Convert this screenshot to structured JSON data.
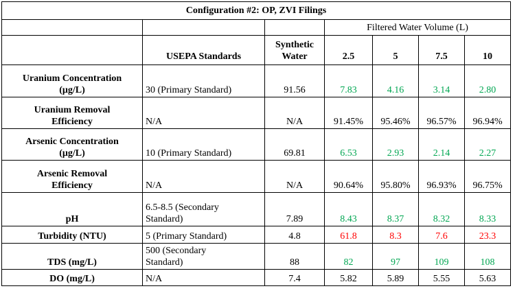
{
  "title": "Configuration #2: OP, ZVI Filings",
  "header": {
    "filtered_water_volume": "Filtered Water Volume (L)",
    "usepa": "USEPA Standards",
    "synthetic_line1": "Synthetic",
    "synthetic_line2": "Water",
    "volumes": [
      "2.5",
      "5",
      "7.5",
      "10"
    ]
  },
  "colors": {
    "good": "#00a651",
    "bad": "#ff0000",
    "neutral": "#000000"
  },
  "rows": [
    {
      "param_line1": "Uranium Concentration",
      "param_line2": "(μg/L)",
      "standard_line1": "30 (Primary Standard)",
      "standard_line2": "",
      "synthetic": "91.56",
      "values": [
        {
          "v": "7.83",
          "c": "green"
        },
        {
          "v": "4.16",
          "c": "green"
        },
        {
          "v": "3.14",
          "c": "green"
        },
        {
          "v": "2.80",
          "c": "green"
        }
      ]
    },
    {
      "param_line1": "Uranium Removal",
      "param_line2": "Efficiency",
      "standard_line1": "N/A",
      "standard_line2": "",
      "synthetic": "N/A",
      "values": [
        {
          "v": "91.45%",
          "c": "black"
        },
        {
          "v": "95.46%",
          "c": "black"
        },
        {
          "v": "96.57%",
          "c": "black"
        },
        {
          "v": "96.94%",
          "c": "black"
        }
      ]
    },
    {
      "param_line1": "Arsenic Concentration",
      "param_line2": "(μg/L)",
      "standard_line1": "10 (Primary Standard)",
      "standard_line2": "",
      "synthetic": "69.81",
      "values": [
        {
          "v": "6.53",
          "c": "green"
        },
        {
          "v": "2.93",
          "c": "green"
        },
        {
          "v": "2.14",
          "c": "green"
        },
        {
          "v": "2.27",
          "c": "green"
        }
      ]
    },
    {
      "param_line1": "Arsenic Removal",
      "param_line2": "Efficiency",
      "standard_line1": "N/A",
      "standard_line2": "",
      "synthetic": "N/A",
      "values": [
        {
          "v": "90.64%",
          "c": "black"
        },
        {
          "v": "95.80%",
          "c": "black"
        },
        {
          "v": "96.93%",
          "c": "black"
        },
        {
          "v": "96.75%",
          "c": "black"
        }
      ]
    },
    {
      "param_line1": "pH",
      "param_line2": "",
      "standard_line1": "6.5-8.5 (Secondary",
      "standard_line2": "Standard)",
      "synthetic": "7.89",
      "values": [
        {
          "v": "8.43",
          "c": "green"
        },
        {
          "v": "8.37",
          "c": "green"
        },
        {
          "v": "8.32",
          "c": "green"
        },
        {
          "v": "8.33",
          "c": "green"
        }
      ]
    },
    {
      "param_line1": "Turbidity (NTU)",
      "param_line2": "",
      "standard_line1": "5 (Primary Standard)",
      "standard_line2": "",
      "synthetic": "4.8",
      "values": [
        {
          "v": "61.8",
          "c": "red"
        },
        {
          "v": "8.3",
          "c": "red"
        },
        {
          "v": "7.6",
          "c": "red"
        },
        {
          "v": "23.3",
          "c": "red"
        }
      ]
    },
    {
      "param_line1": "TDS (mg/L)",
      "param_line2": "",
      "standard_line1": "500 (Secondary",
      "standard_line2": "Standard)",
      "synthetic": "88",
      "values": [
        {
          "v": "82",
          "c": "green"
        },
        {
          "v": "97",
          "c": "green"
        },
        {
          "v": "109",
          "c": "green"
        },
        {
          "v": "108",
          "c": "green"
        }
      ]
    },
    {
      "param_line1": "DO (mg/L)",
      "param_line2": "",
      "standard_line1": "N/A",
      "standard_line2": "",
      "synthetic": "7.4",
      "values": [
        {
          "v": "5.82",
          "c": "black"
        },
        {
          "v": "5.89",
          "c": "black"
        },
        {
          "v": "5.55",
          "c": "black"
        },
        {
          "v": "5.63",
          "c": "black"
        }
      ]
    }
  ]
}
